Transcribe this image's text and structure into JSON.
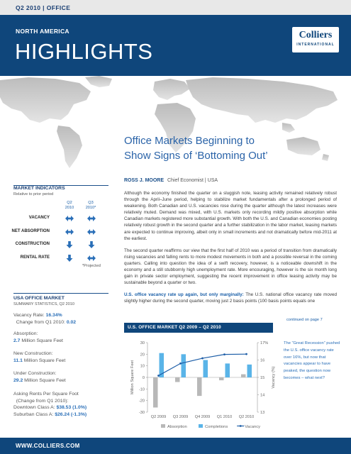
{
  "header": {
    "period_label": "Q2 2010  |  OFFICE"
  },
  "hero": {
    "region": "NORTH AMERICA",
    "title": "HIGHLIGHTS"
  },
  "logo": {
    "name": "Colliers",
    "sub": "INTERNATIONAL"
  },
  "article": {
    "headline_line1": "Office Markets Beginning to",
    "headline_line2": "Show Signs of ‘Bottoming Out’",
    "author": "ROSS J. MOORE",
    "author_title": "Chief Economist | USA",
    "p1": "Although the economy finished the quarter on a sluggish note, leasing activity remained relatively robust through the April–June period, helping to stabilize market fundamentals after a prolonged period of weakening. Both Canadian and U.S. vacancies rose during the quarter although the latest increases were relatively muted. Demand was mixed, with U.S. markets only recording mildly positive absorption while Canadian markets registered more substantial growth. With both the U.S. and Canadian economies posting relatively robust growth in the second quarter and a further stabilization in the labor market, leasing markets are expected to continue improving, albeit only in small increments and not dramatically before mid-2011 at the earliest.",
    "p2": "The second quarter reaffirms our view that the first half of 2010 was a period of transition from dramatically rising vacancies and falling rents to more modest movements in both and a possible reversal in the coming quarters. Calling into question the idea of a swift recovery, however, is a noticeable downshift in the economy and a still stubbornly high unemployment rate. More encouraging, however is the six month long gain in private sector employment, suggesting the recent improvement in office leasing activity may be sustainable beyond a quarter or two.",
    "p3_lead": "U.S. office vacancy rate up again, but only marginally:",
    "p3": " The U.S. national office vacancy rate moved slightly higher during the second quarter, moving just 2 basis points (100 basis points equals one",
    "continued": "continued on page 7"
  },
  "indicators": {
    "title": "MARKET INDICATORS",
    "subtitle": "Relative to prior period",
    "col1": [
      "Q2",
      "2010"
    ],
    "col2": [
      "Q3",
      "2010*"
    ],
    "rows": [
      {
        "label": "VACANCY",
        "q2": "both",
        "q3": "both"
      },
      {
        "label": "NET ABSORPTION",
        "q2": "both",
        "q3": "both"
      },
      {
        "label": "CONSTRUCTION",
        "q2": "down",
        "q3": "down"
      },
      {
        "label": "RENTAL RATE",
        "q2": "down",
        "q3": "both"
      }
    ],
    "projected": "*Projected",
    "arrow_color": "#2a6fb8"
  },
  "usa": {
    "title": "USA OFFICE MARKET",
    "subtitle": "SUMMARY STATISTICS, Q2 2010",
    "vacancy_label": "Vacancy Rate:",
    "vacancy_value": "16.34%",
    "change_label": "Change from Q1 2010:",
    "change_value": "0.02",
    "absorption_label": "Absorption:",
    "absorption_value": "2.7",
    "absorption_unit": "Million Square Feet",
    "construction_label": "New Construction:",
    "construction_value": "11.1",
    "construction_unit": "Million Square Feet",
    "under_label": "Under Construction:",
    "under_value": "29.2",
    "under_unit": "Million Square Feet",
    "rents_label": "Asking Rents Per Square Foot",
    "rents_sub": "(Change from Q1 2010):",
    "downtown_label": "Downtown Class A:",
    "downtown_value": "$38.53 (1.0%)",
    "suburban_label": "Suburban Class A:",
    "suburban_value": "$26.24 (-1.3%)"
  },
  "chart_note": "The “Great Recession” pushed the U.S. office vacancy rate over 16%, but now that vacancies appear to have peaked, the question now becomes – what next?",
  "chart_data": {
    "type": "bar",
    "title": "U.S. OFFICE MARKET Q2 2009 – Q2 2010",
    "categories": [
      "Q2 2009",
      "Q3 2009",
      "Q4 2009",
      "Q1 2010",
      "Q2 2010"
    ],
    "series": [
      {
        "name": "Absorption",
        "type": "bar",
        "axis": "left",
        "color": "#b8b8b8",
        "values": [
          -26,
          -4,
          -16,
          -2.5,
          2.7
        ]
      },
      {
        "name": "Completions",
        "type": "bar",
        "axis": "left",
        "color": "#5ab4e8",
        "values": [
          21,
          20,
          15,
          12,
          11.1
        ]
      },
      {
        "name": "Vacancy",
        "type": "line",
        "axis": "right",
        "color": "#1f5fa8",
        "values": [
          15.1,
          15.8,
          16.1,
          16.32,
          16.34
        ]
      }
    ],
    "ylabel": "Million Square Feet",
    "ylim": [
      -30,
      30
    ],
    "yticks": [
      30,
      20,
      10,
      0,
      -10,
      -20,
      -30
    ],
    "y2label": "Vacancy (%)",
    "y2lim": [
      13,
      17
    ],
    "y2ticks": [
      "17%",
      "16",
      "15",
      "14",
      "13"
    ],
    "grid": false,
    "legend": "bottom"
  },
  "footer": {
    "url": "WWW.COLLIERS.COM"
  }
}
